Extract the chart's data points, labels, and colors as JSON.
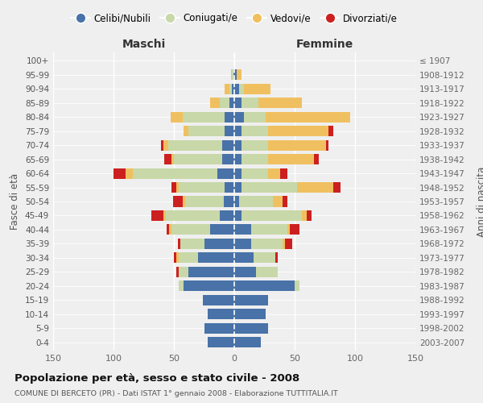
{
  "age_groups": [
    "0-4",
    "5-9",
    "10-14",
    "15-19",
    "20-24",
    "25-29",
    "30-34",
    "35-39",
    "40-44",
    "45-49",
    "50-54",
    "55-59",
    "60-64",
    "65-69",
    "70-74",
    "75-79",
    "80-84",
    "85-89",
    "90-94",
    "95-99",
    "100+"
  ],
  "birth_years": [
    "2003-2007",
    "1998-2002",
    "1993-1997",
    "1988-1992",
    "1983-1987",
    "1978-1982",
    "1973-1977",
    "1968-1972",
    "1963-1967",
    "1958-1962",
    "1953-1957",
    "1948-1952",
    "1943-1947",
    "1938-1942",
    "1933-1937",
    "1928-1932",
    "1923-1927",
    "1918-1922",
    "1913-1917",
    "1908-1912",
    "≤ 1907"
  ],
  "maschi": {
    "celibi": [
      22,
      25,
      22,
      26,
      42,
      38,
      30,
      25,
      20,
      12,
      9,
      8,
      14,
      10,
      10,
      8,
      8,
      4,
      2,
      1,
      0
    ],
    "coniugati": [
      0,
      0,
      0,
      0,
      4,
      8,
      16,
      20,
      32,
      45,
      32,
      38,
      70,
      40,
      45,
      30,
      35,
      8,
      2,
      1,
      0
    ],
    "vedovi": [
      0,
      0,
      0,
      0,
      0,
      0,
      2,
      0,
      2,
      2,
      2,
      2,
      6,
      2,
      4,
      4,
      10,
      8,
      4,
      1,
      0
    ],
    "divorziati": [
      0,
      0,
      0,
      0,
      0,
      2,
      2,
      2,
      2,
      10,
      8,
      4,
      10,
      6,
      2,
      0,
      0,
      0,
      0,
      0,
      0
    ]
  },
  "femmine": {
    "nubili": [
      22,
      28,
      26,
      28,
      50,
      18,
      16,
      14,
      14,
      6,
      4,
      6,
      6,
      6,
      6,
      6,
      8,
      6,
      4,
      2,
      0
    ],
    "coniugate": [
      0,
      0,
      0,
      0,
      4,
      18,
      18,
      26,
      30,
      50,
      28,
      46,
      22,
      22,
      22,
      22,
      18,
      14,
      4,
      0,
      0
    ],
    "vedove": [
      0,
      0,
      0,
      0,
      0,
      0,
      0,
      2,
      2,
      4,
      8,
      30,
      10,
      38,
      48,
      50,
      70,
      36,
      22,
      4,
      0
    ],
    "divorziate": [
      0,
      0,
      0,
      0,
      0,
      0,
      2,
      6,
      8,
      4,
      4,
      6,
      6,
      4,
      2,
      4,
      0,
      0,
      0,
      0,
      0
    ]
  },
  "colors": {
    "celibi": "#4872a8",
    "coniugati": "#c8d8a8",
    "vedovi": "#f0c060",
    "divorziati": "#cc2020"
  },
  "xlim": 150,
  "title": "Popolazione per età, sesso e stato civile - 2008",
  "subtitle": "COMUNE DI BERCETO (PR) - Dati ISTAT 1° gennaio 2008 - Elaborazione TUTTITALIA.IT",
  "xlabel_left": "Maschi",
  "xlabel_right": "Femmine",
  "ylabel_left": "Fasce di età",
  "ylabel_right": "Anni di nascita",
  "legend_labels": [
    "Celibi/Nubili",
    "Coniugati/e",
    "Vedovi/e",
    "Divorziati/e"
  ],
  "bg_color": "#efefef"
}
